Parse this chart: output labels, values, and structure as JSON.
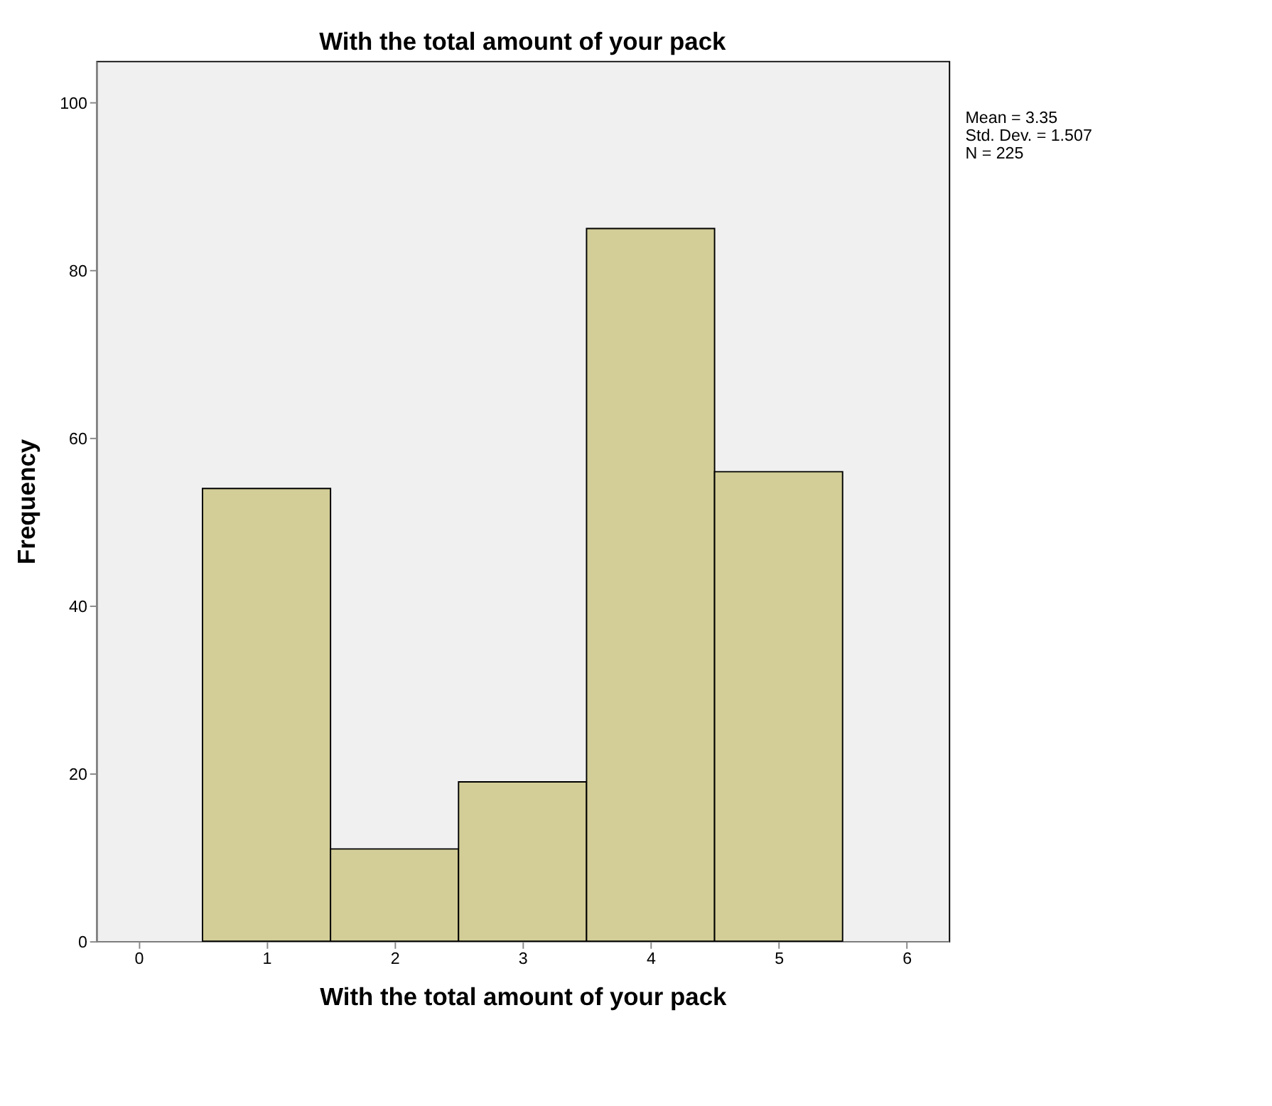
{
  "chart_data": {
    "type": "histogram",
    "title": "With the total amount of your pack",
    "xlabel": "With the total amount of your pack",
    "ylabel": "Frequency",
    "bins": [
      0.5,
      1.5,
      2.5,
      3.5,
      4.5,
      5.5
    ],
    "values": [
      54,
      11,
      19,
      85,
      56
    ],
    "color": "#d3ce97",
    "xlim": [
      -0.33,
      6.33
    ],
    "xticks": [
      0,
      1,
      2,
      3,
      4,
      5,
      6
    ],
    "ylim": [
      0,
      105
    ],
    "yticks": [
      0,
      20,
      40,
      60,
      80,
      100
    ],
    "grid": false,
    "annotations": [
      "Mean = 3.35",
      "Std. Dev. = 1.507",
      "N = 225"
    ]
  }
}
